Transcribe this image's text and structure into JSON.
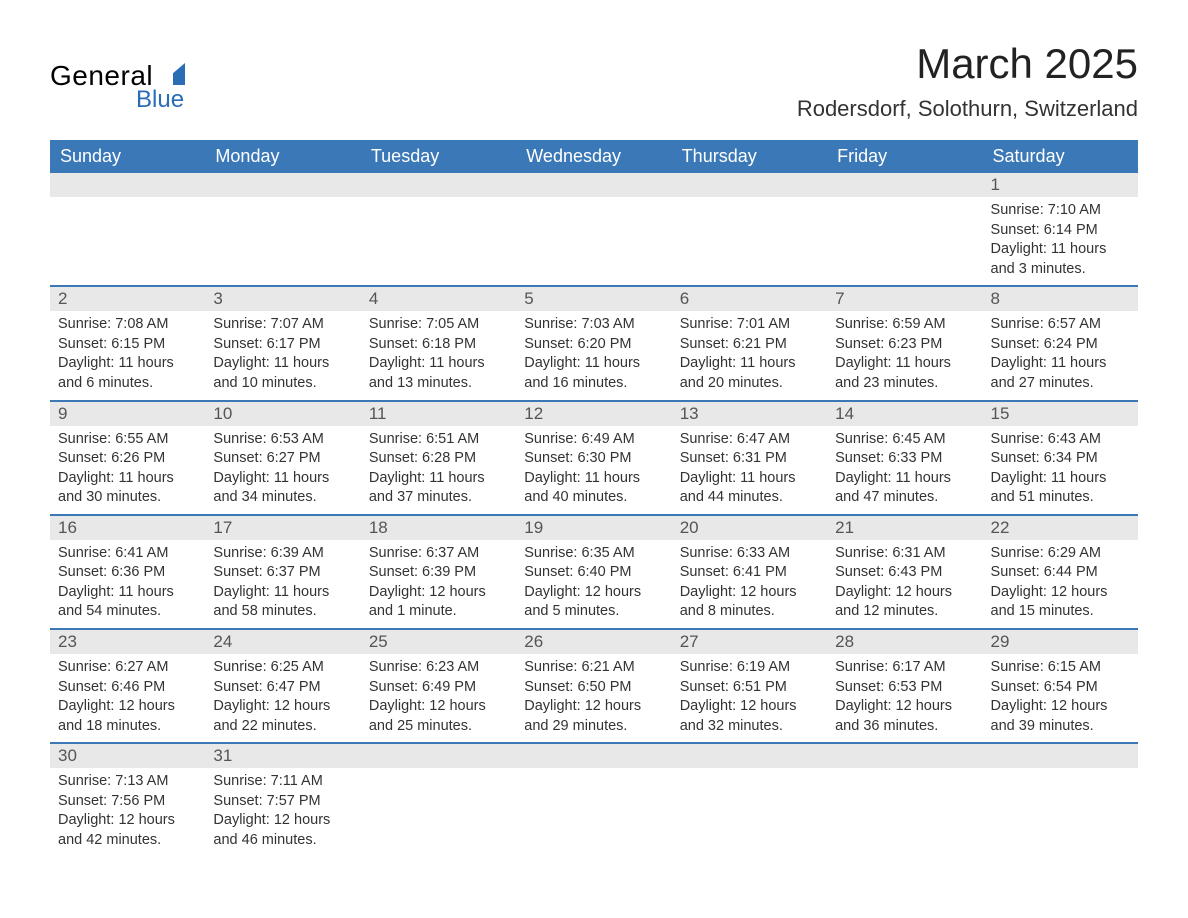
{
  "logo": {
    "general": "General",
    "blue": "Blue"
  },
  "title": "March 2025",
  "location": "Rodersdorf, Solothurn, Switzerland",
  "colors": {
    "header_bg": "#3a78b8",
    "header_text": "#ffffff",
    "daynum_bg": "#e8e8e8",
    "border": "#3a78b8",
    "logo_blue": "#2a6db5"
  },
  "weekdays": [
    "Sunday",
    "Monday",
    "Tuesday",
    "Wednesday",
    "Thursday",
    "Friday",
    "Saturday"
  ],
  "weeks": [
    [
      null,
      null,
      null,
      null,
      null,
      null,
      {
        "n": "1",
        "sunrise": "Sunrise: 7:10 AM",
        "sunset": "Sunset: 6:14 PM",
        "day1": "Daylight: 11 hours",
        "day2": "and 3 minutes."
      }
    ],
    [
      {
        "n": "2",
        "sunrise": "Sunrise: 7:08 AM",
        "sunset": "Sunset: 6:15 PM",
        "day1": "Daylight: 11 hours",
        "day2": "and 6 minutes."
      },
      {
        "n": "3",
        "sunrise": "Sunrise: 7:07 AM",
        "sunset": "Sunset: 6:17 PM",
        "day1": "Daylight: 11 hours",
        "day2": "and 10 minutes."
      },
      {
        "n": "4",
        "sunrise": "Sunrise: 7:05 AM",
        "sunset": "Sunset: 6:18 PM",
        "day1": "Daylight: 11 hours",
        "day2": "and 13 minutes."
      },
      {
        "n": "5",
        "sunrise": "Sunrise: 7:03 AM",
        "sunset": "Sunset: 6:20 PM",
        "day1": "Daylight: 11 hours",
        "day2": "and 16 minutes."
      },
      {
        "n": "6",
        "sunrise": "Sunrise: 7:01 AM",
        "sunset": "Sunset: 6:21 PM",
        "day1": "Daylight: 11 hours",
        "day2": "and 20 minutes."
      },
      {
        "n": "7",
        "sunrise": "Sunrise: 6:59 AM",
        "sunset": "Sunset: 6:23 PM",
        "day1": "Daylight: 11 hours",
        "day2": "and 23 minutes."
      },
      {
        "n": "8",
        "sunrise": "Sunrise: 6:57 AM",
        "sunset": "Sunset: 6:24 PM",
        "day1": "Daylight: 11 hours",
        "day2": "and 27 minutes."
      }
    ],
    [
      {
        "n": "9",
        "sunrise": "Sunrise: 6:55 AM",
        "sunset": "Sunset: 6:26 PM",
        "day1": "Daylight: 11 hours",
        "day2": "and 30 minutes."
      },
      {
        "n": "10",
        "sunrise": "Sunrise: 6:53 AM",
        "sunset": "Sunset: 6:27 PM",
        "day1": "Daylight: 11 hours",
        "day2": "and 34 minutes."
      },
      {
        "n": "11",
        "sunrise": "Sunrise: 6:51 AM",
        "sunset": "Sunset: 6:28 PM",
        "day1": "Daylight: 11 hours",
        "day2": "and 37 minutes."
      },
      {
        "n": "12",
        "sunrise": "Sunrise: 6:49 AM",
        "sunset": "Sunset: 6:30 PM",
        "day1": "Daylight: 11 hours",
        "day2": "and 40 minutes."
      },
      {
        "n": "13",
        "sunrise": "Sunrise: 6:47 AM",
        "sunset": "Sunset: 6:31 PM",
        "day1": "Daylight: 11 hours",
        "day2": "and 44 minutes."
      },
      {
        "n": "14",
        "sunrise": "Sunrise: 6:45 AM",
        "sunset": "Sunset: 6:33 PM",
        "day1": "Daylight: 11 hours",
        "day2": "and 47 minutes."
      },
      {
        "n": "15",
        "sunrise": "Sunrise: 6:43 AM",
        "sunset": "Sunset: 6:34 PM",
        "day1": "Daylight: 11 hours",
        "day2": "and 51 minutes."
      }
    ],
    [
      {
        "n": "16",
        "sunrise": "Sunrise: 6:41 AM",
        "sunset": "Sunset: 6:36 PM",
        "day1": "Daylight: 11 hours",
        "day2": "and 54 minutes."
      },
      {
        "n": "17",
        "sunrise": "Sunrise: 6:39 AM",
        "sunset": "Sunset: 6:37 PM",
        "day1": "Daylight: 11 hours",
        "day2": "and 58 minutes."
      },
      {
        "n": "18",
        "sunrise": "Sunrise: 6:37 AM",
        "sunset": "Sunset: 6:39 PM",
        "day1": "Daylight: 12 hours",
        "day2": "and 1 minute."
      },
      {
        "n": "19",
        "sunrise": "Sunrise: 6:35 AM",
        "sunset": "Sunset: 6:40 PM",
        "day1": "Daylight: 12 hours",
        "day2": "and 5 minutes."
      },
      {
        "n": "20",
        "sunrise": "Sunrise: 6:33 AM",
        "sunset": "Sunset: 6:41 PM",
        "day1": "Daylight: 12 hours",
        "day2": "and 8 minutes."
      },
      {
        "n": "21",
        "sunrise": "Sunrise: 6:31 AM",
        "sunset": "Sunset: 6:43 PM",
        "day1": "Daylight: 12 hours",
        "day2": "and 12 minutes."
      },
      {
        "n": "22",
        "sunrise": "Sunrise: 6:29 AM",
        "sunset": "Sunset: 6:44 PM",
        "day1": "Daylight: 12 hours",
        "day2": "and 15 minutes."
      }
    ],
    [
      {
        "n": "23",
        "sunrise": "Sunrise: 6:27 AM",
        "sunset": "Sunset: 6:46 PM",
        "day1": "Daylight: 12 hours",
        "day2": "and 18 minutes."
      },
      {
        "n": "24",
        "sunrise": "Sunrise: 6:25 AM",
        "sunset": "Sunset: 6:47 PM",
        "day1": "Daylight: 12 hours",
        "day2": "and 22 minutes."
      },
      {
        "n": "25",
        "sunrise": "Sunrise: 6:23 AM",
        "sunset": "Sunset: 6:49 PM",
        "day1": "Daylight: 12 hours",
        "day2": "and 25 minutes."
      },
      {
        "n": "26",
        "sunrise": "Sunrise: 6:21 AM",
        "sunset": "Sunset: 6:50 PM",
        "day1": "Daylight: 12 hours",
        "day2": "and 29 minutes."
      },
      {
        "n": "27",
        "sunrise": "Sunrise: 6:19 AM",
        "sunset": "Sunset: 6:51 PM",
        "day1": "Daylight: 12 hours",
        "day2": "and 32 minutes."
      },
      {
        "n": "28",
        "sunrise": "Sunrise: 6:17 AM",
        "sunset": "Sunset: 6:53 PM",
        "day1": "Daylight: 12 hours",
        "day2": "and 36 minutes."
      },
      {
        "n": "29",
        "sunrise": "Sunrise: 6:15 AM",
        "sunset": "Sunset: 6:54 PM",
        "day1": "Daylight: 12 hours",
        "day2": "and 39 minutes."
      }
    ],
    [
      {
        "n": "30",
        "sunrise": "Sunrise: 7:13 AM",
        "sunset": "Sunset: 7:56 PM",
        "day1": "Daylight: 12 hours",
        "day2": "and 42 minutes."
      },
      {
        "n": "31",
        "sunrise": "Sunrise: 7:11 AM",
        "sunset": "Sunset: 7:57 PM",
        "day1": "Daylight: 12 hours",
        "day2": "and 46 minutes."
      },
      null,
      null,
      null,
      null,
      null
    ]
  ]
}
